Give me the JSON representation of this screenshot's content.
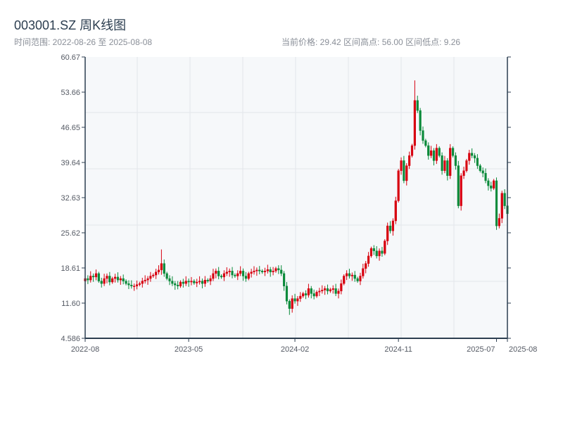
{
  "header": {
    "title": "003001.SZ 周K线图",
    "range": "时间范围: 2022-08-26 至 2025-08-08",
    "stats": "当前价格: 29.42  区间高点: 56.00  区间低点: 9.26"
  },
  "colors": {
    "up": "#d7000f",
    "down": "#0a8a3a",
    "axis": "#2c3e50",
    "grid": "#e3e6eb",
    "bg": "#f6f8fa"
  },
  "chart_data": {
    "type": "candlestick",
    "title": "003001.SZ 周K线图",
    "ylim": [
      4.586,
      60.67
    ],
    "yticks": [
      "4.586",
      "11.60",
      "18.61",
      "25.62",
      "32.63",
      "39.64",
      "46.65",
      "53.66",
      "60.67"
    ],
    "xticks": [
      {
        "label": "2022-08",
        "week": 0
      },
      {
        "label": "2023-05",
        "week": 38
      },
      {
        "label": "2024-02",
        "week": 77
      },
      {
        "label": "2024-11",
        "week": 115
      },
      {
        "label": "2025-07",
        "week": 151
      },
      {
        "label": "2025-08",
        "week": 155
      }
    ],
    "first_open": 16.0,
    "close": [
      16.5,
      16.2,
      17.0,
      16.8,
      17.5,
      16.0,
      15.5,
      16.5,
      17.0,
      15.8,
      16.5,
      16.8,
      16.2,
      16.5,
      16.0,
      15.5,
      15.2,
      15.0,
      15.0,
      15.3,
      15.5,
      16.0,
      16.2,
      16.5,
      17.0,
      17.2,
      17.8,
      18.2,
      19.5,
      17.5,
      16.5,
      16.0,
      15.5,
      15.2,
      15.0,
      15.8,
      15.5,
      16.0,
      15.8,
      16.0,
      15.6,
      15.8,
      16.0,
      15.5,
      16.2,
      16.0,
      16.5,
      17.5,
      18.0,
      17.0,
      16.8,
      17.5,
      17.8,
      18.0,
      17.2,
      17.0,
      17.5,
      18.0,
      17.0,
      16.5,
      17.5,
      17.8,
      18.0,
      18.2,
      18.0,
      17.8,
      18.0,
      18.3,
      17.8,
      18.0,
      18.5,
      18.2,
      17.5,
      15.0,
      12.0,
      10.5,
      12.5,
      12.0,
      12.5,
      13.0,
      13.5,
      13.2,
      14.5,
      13.5,
      13.0,
      13.8,
      14.0,
      14.2,
      14.5,
      14.0,
      14.3,
      14.5,
      13.5,
      14.0,
      15.5,
      17.0,
      17.5,
      17.0,
      17.2,
      16.5,
      16.0,
      17.0,
      18.5,
      19.5,
      21.0,
      22.5,
      22.0,
      21.0,
      22.0,
      21.5,
      24.0,
      27.0,
      26.0,
      28.0,
      32.0,
      38.0,
      40.0,
      36.0,
      39.0,
      41.0,
      43.0,
      52.0,
      50.0,
      46.0,
      44.0,
      43.0,
      41.0,
      42.0,
      40.0,
      42.5,
      41.0,
      38.0,
      40.0,
      37.0,
      42.5,
      41.0,
      39.0,
      31.0,
      37.0,
      38.0,
      40.0,
      41.5,
      41.0,
      40.5,
      39.0,
      38.0,
      37.5,
      36.0,
      35.0,
      34.5,
      36.0,
      27.0,
      28.5,
      33.5,
      31.0,
      29.42
    ],
    "extremes": [
      {
        "week": 28,
        "high": 22.3
      },
      {
        "week": 121,
        "high": 56.0
      },
      {
        "week": 75,
        "low": 9.26
      }
    ]
  }
}
